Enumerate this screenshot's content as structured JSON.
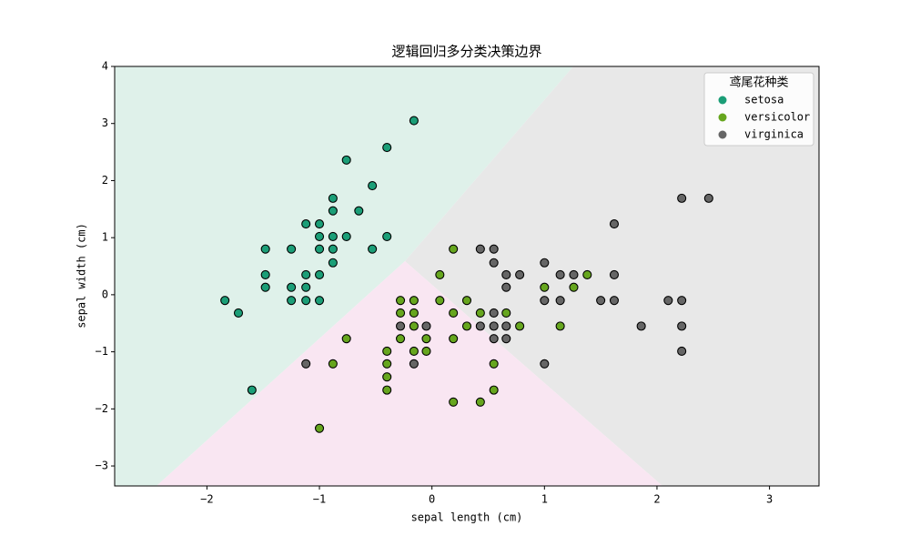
{
  "chart_data": {
    "type": "scatter",
    "title": "逻辑回归多分类决策边界",
    "x_label": "sepal length (cm)",
    "y_label": "sepal width (cm)",
    "xlim": [
      -2.82,
      3.44
    ],
    "ylim": [
      -3.35,
      4.0
    ],
    "xticks": [
      {
        "value": -2,
        "label": "−2"
      },
      {
        "value": -1,
        "label": "−1"
      },
      0,
      1,
      2,
      3
    ],
    "yticks": [
      {
        "value": -3,
        "label": "−3"
      },
      {
        "value": -2,
        "label": "−2"
      },
      {
        "value": -1,
        "label": "−1"
      },
      0,
      1,
      2,
      3,
      4
    ],
    "legend_title": "鸢尾花种类",
    "legend_position": "upper right",
    "series": [
      {
        "name": "setosa",
        "color": "#1b9e77",
        "x": [
          -0.16,
          -0.4,
          -0.76,
          -0.53,
          -0.88,
          -0.88,
          -0.88,
          -0.88,
          -0.88,
          -1.0,
          -1.12,
          -0.65,
          -1.0,
          -0.76,
          -0.4,
          -1.0,
          -1.48,
          -1.25,
          -0.53,
          -1.12,
          -1.48,
          -1.0,
          -1.48,
          -1.25,
          -1.12,
          -1.25,
          -1.12,
          -1.0,
          -1.84,
          -1.72,
          -1.6
        ],
        "values": [
          3.05,
          2.58,
          2.36,
          1.91,
          1.69,
          1.47,
          1.02,
          0.8,
          0.56,
          1.24,
          1.24,
          1.47,
          1.02,
          1.02,
          1.02,
          0.8,
          0.8,
          0.8,
          0.8,
          0.35,
          0.35,
          0.35,
          0.13,
          0.13,
          0.13,
          -0.1,
          -0.1,
          -0.1,
          -0.1,
          -0.32,
          -1.67
        ]
      },
      {
        "name": "versicolor",
        "color": "#66a61e",
        "x": [
          0.19,
          0.07,
          1.38,
          1.26,
          1.0,
          -0.28,
          -0.16,
          0.07,
          0.31,
          -0.28,
          -0.16,
          0.19,
          0.43,
          0.66,
          -0.16,
          0.31,
          0.78,
          1.14,
          -0.76,
          -0.28,
          -0.05,
          0.19,
          -0.4,
          -0.16,
          -0.05,
          -0.88,
          -0.4,
          0.55,
          -0.4,
          -0.4,
          0.55,
          0.19,
          0.43,
          -1.0
        ],
        "values": [
          0.8,
          0.35,
          0.35,
          0.13,
          0.13,
          -0.1,
          -0.1,
          -0.1,
          -0.1,
          -0.32,
          -0.32,
          -0.32,
          -0.32,
          -0.32,
          -0.55,
          -0.55,
          -0.55,
          -0.55,
          -0.77,
          -0.77,
          -0.77,
          -0.77,
          -0.99,
          -0.99,
          -0.99,
          -1.21,
          -1.21,
          -1.21,
          -1.44,
          -1.67,
          -1.67,
          -1.88,
          -1.88,
          -2.34
        ]
      },
      {
        "name": "virginica",
        "color": "#666666",
        "x": [
          2.22,
          2.46,
          1.62,
          0.43,
          0.55,
          0.55,
          1.0,
          0.66,
          0.78,
          1.14,
          1.26,
          1.62,
          0.66,
          1.0,
          1.14,
          1.5,
          1.62,
          2.1,
          2.22,
          0.55,
          -0.28,
          -0.05,
          0.43,
          0.55,
          0.66,
          1.86,
          2.22,
          0.55,
          0.66,
          2.22,
          -1.12,
          -0.16,
          1.0
        ],
        "values": [
          1.69,
          1.69,
          1.24,
          0.8,
          0.8,
          0.56,
          0.56,
          0.35,
          0.35,
          0.35,
          0.35,
          0.35,
          0.13,
          -0.1,
          -0.1,
          -0.1,
          -0.1,
          -0.1,
          -0.1,
          -0.32,
          -0.55,
          -0.55,
          -0.55,
          -0.55,
          -0.55,
          -0.55,
          -0.55,
          -0.77,
          -0.77,
          -0.99,
          -1.21,
          -1.21,
          -1.21
        ]
      }
    ]
  }
}
